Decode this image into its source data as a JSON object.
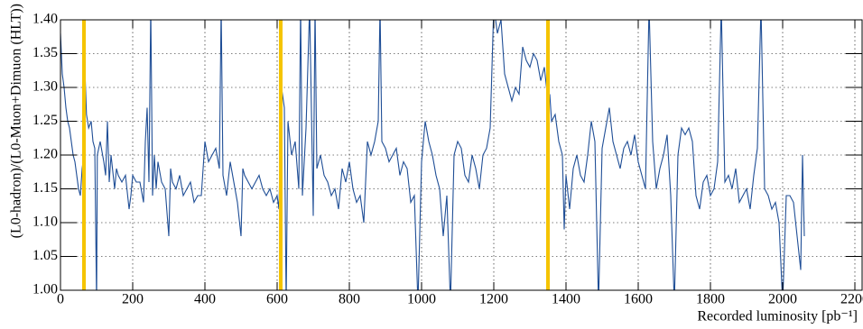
{
  "chart_data": {
    "type": "line",
    "x_label": "Recorded luminosity [pb⁻¹]",
    "y_label": "(L0-hadron)/(L0-Muon+Dimuon (HLT))",
    "xlim": [
      0,
      2220
    ],
    "ylim": [
      1.0,
      1.4
    ],
    "xticks": [
      0,
      200,
      400,
      600,
      800,
      1000,
      1200,
      1400,
      1600,
      1800,
      2000,
      2200
    ],
    "yticks": [
      {
        "value": 1.0,
        "label": "1.00"
      },
      1.05,
      {
        "value": 1.1,
        "label": "1.10"
      },
      1.15,
      {
        "value": 1.2,
        "label": "1.20"
      },
      1.25,
      {
        "value": 1.3,
        "label": "1.30"
      },
      1.35,
      {
        "value": 1.4,
        "label": "1.40"
      }
    ],
    "grid": true,
    "vertical_lines": {
      "color": "#f5c400",
      "x": [
        65,
        610,
        1350
      ]
    },
    "x": [
      0,
      5,
      10,
      15,
      20,
      25,
      30,
      35,
      40,
      45,
      50,
      55,
      60,
      65,
      68,
      72,
      78,
      85,
      90,
      95,
      100,
      102,
      110,
      120,
      125,
      130,
      135,
      140,
      150,
      155,
      160,
      170,
      180,
      190,
      195,
      200,
      210,
      220,
      230,
      235,
      240,
      245,
      250,
      255,
      260,
      265,
      270,
      280,
      290,
      300,
      305,
      310,
      320,
      330,
      340,
      350,
      360,
      370,
      380,
      390,
      400,
      410,
      420,
      430,
      440,
      445,
      450,
      460,
      470,
      480,
      490,
      500,
      505,
      510,
      520,
      530,
      540,
      550,
      560,
      570,
      580,
      590,
      600,
      605,
      612,
      620,
      625,
      630,
      640,
      650,
      660,
      665,
      670,
      680,
      690,
      700,
      705,
      710,
      720,
      730,
      740,
      750,
      760,
      770,
      780,
      790,
      800,
      810,
      820,
      830,
      840,
      850,
      860,
      870,
      880,
      885,
      890,
      900,
      910,
      920,
      930,
      940,
      950,
      960,
      970,
      980,
      990,
      1000,
      1010,
      1020,
      1030,
      1040,
      1050,
      1060,
      1070,
      1080,
      1090,
      1100,
      1110,
      1120,
      1130,
      1140,
      1150,
      1160,
      1170,
      1180,
      1190,
      1200,
      1210,
      1220,
      1230,
      1240,
      1250,
      1260,
      1270,
      1280,
      1290,
      1300,
      1310,
      1320,
      1330,
      1340,
      1350,
      1355,
      1360,
      1370,
      1380,
      1390,
      1395,
      1400,
      1410,
      1420,
      1430,
      1440,
      1450,
      1460,
      1470,
      1480,
      1490,
      1500,
      1510,
      1520,
      1530,
      1540,
      1550,
      1560,
      1570,
      1580,
      1590,
      1600,
      1610,
      1620,
      1630,
      1640,
      1650,
      1660,
      1670,
      1680,
      1690,
      1700,
      1710,
      1720,
      1730,
      1740,
      1750,
      1760,
      1770,
      1780,
      1790,
      1800,
      1810,
      1820,
      1830,
      1840,
      1850,
      1860,
      1870,
      1880,
      1890,
      1900,
      1910,
      1920,
      1930,
      1940,
      1950,
      1960,
      1970,
      1980,
      1990,
      2000,
      2010,
      2020,
      2030,
      2040,
      2050,
      2055,
      2060
    ],
    "series": [
      {
        "color": "#1f4e96",
        "values": [
          1.38,
          1.32,
          1.3,
          1.27,
          1.25,
          1.24,
          1.22,
          1.2,
          1.19,
          1.17,
          1.15,
          1.14,
          1.18,
          1.2,
          1.32,
          1.26,
          1.24,
          1.25,
          1.22,
          1.21,
          0.98,
          1.2,
          1.22,
          1.19,
          1.17,
          1.25,
          1.16,
          1.2,
          1.15,
          1.18,
          1.17,
          1.16,
          1.17,
          1.12,
          1.14,
          1.17,
          1.16,
          1.16,
          1.13,
          1.22,
          1.27,
          1.16,
          1.42,
          1.14,
          1.2,
          1.15,
          1.19,
          1.16,
          1.15,
          1.08,
          1.18,
          1.16,
          1.15,
          1.17,
          1.14,
          1.15,
          1.16,
          1.13,
          1.14,
          1.14,
          1.22,
          1.19,
          1.2,
          1.21,
          1.18,
          1.42,
          1.17,
          1.14,
          1.19,
          1.16,
          1.13,
          1.08,
          1.18,
          1.17,
          1.16,
          1.15,
          1.16,
          1.17,
          1.15,
          1.14,
          1.15,
          1.13,
          1.14,
          1.12,
          1.3,
          1.27,
          0.98,
          1.25,
          1.2,
          1.22,
          1.15,
          1.42,
          1.14,
          1.24,
          1.42,
          1.11,
          1.42,
          1.18,
          1.2,
          1.17,
          1.16,
          1.14,
          1.15,
          1.12,
          1.18,
          1.16,
          1.19,
          1.15,
          1.13,
          1.14,
          1.1,
          1.22,
          1.2,
          1.22,
          1.25,
          1.42,
          1.22,
          1.21,
          1.19,
          1.2,
          1.21,
          1.17,
          1.19,
          1.18,
          1.13,
          1.14,
          0.98,
          1.19,
          1.25,
          1.22,
          1.2,
          1.17,
          1.15,
          1.08,
          1.14,
          0.98,
          1.2,
          1.22,
          1.21,
          1.17,
          1.16,
          1.2,
          1.18,
          1.15,
          1.2,
          1.21,
          1.24,
          1.42,
          1.38,
          1.4,
          1.32,
          1.3,
          1.28,
          1.3,
          1.29,
          1.36,
          1.34,
          1.33,
          1.35,
          1.34,
          1.31,
          1.33,
          1.28,
          1.29,
          1.25,
          1.26,
          1.22,
          1.2,
          1.09,
          1.17,
          1.12,
          1.18,
          1.2,
          1.17,
          1.16,
          1.2,
          1.25,
          1.22,
          0.98,
          1.21,
          1.24,
          1.27,
          1.22,
          1.2,
          1.18,
          1.21,
          1.22,
          1.2,
          1.23,
          1.19,
          1.17,
          1.15,
          1.42,
          1.22,
          1.15,
          1.18,
          1.2,
          1.23,
          1.14,
          0.98,
          1.2,
          1.24,
          1.23,
          1.24,
          1.22,
          1.14,
          1.12,
          1.16,
          1.17,
          1.14,
          1.15,
          1.19,
          1.42,
          1.16,
          1.17,
          1.15,
          1.18,
          1.13,
          1.14,
          1.15,
          1.12,
          1.17,
          1.21,
          1.42,
          1.15,
          1.14,
          1.12,
          1.13,
          1.1,
          0.98,
          1.14,
          1.14,
          1.13,
          1.08,
          1.03,
          1.2,
          1.08
        ]
      }
    ]
  }
}
